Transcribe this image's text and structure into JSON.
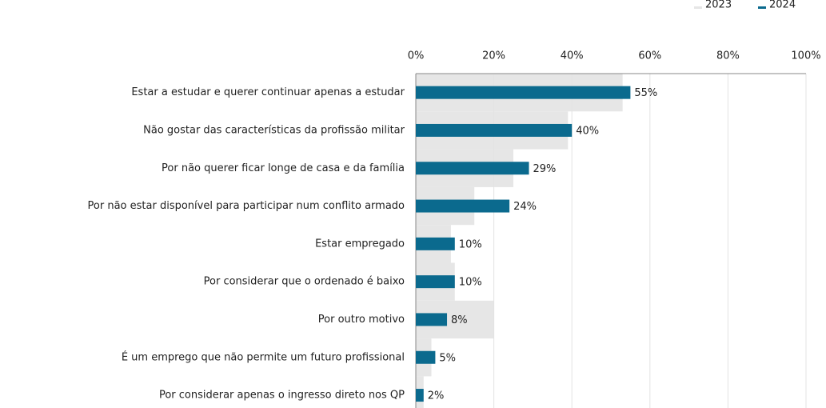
{
  "chart_data": {
    "type": "barh",
    "categories": [
      "Estar a estudar e querer continuar apenas a estudar",
      "Não gostar das características da profissão militar",
      "Por não querer ficar longe de casa e da família",
      "Por não estar disponível para participar num conflito armado",
      "Estar empregado",
      "Por considerar que o ordenado é baixo",
      "Por outro motivo",
      "É um emprego que não permite um futuro profissional",
      "Por considerar apenas o ingresso direto nos QP"
    ],
    "series": [
      {
        "name": "2023",
        "color": "#e6e6e6",
        "values": [
          53,
          39,
          25,
          15,
          9,
          10,
          20,
          4,
          2
        ]
      },
      {
        "name": "2024",
        "color": "#0b6a8e",
        "values": [
          55,
          40,
          29,
          24,
          10,
          10,
          8,
          5,
          2
        ],
        "value_labels": [
          "55%",
          "40%",
          "29%",
          "24%",
          "10%",
          "10%",
          "8%",
          "5%",
          "2%"
        ]
      }
    ],
    "xlim": [
      0,
      100
    ],
    "xticks": [
      {
        "value": 0,
        "label": "0%"
      },
      {
        "value": 20,
        "label": "20%"
      },
      {
        "value": 40,
        "label": "40%"
      },
      {
        "value": 60,
        "label": "60%"
      },
      {
        "value": 80,
        "label": "80%"
      },
      {
        "value": 100,
        "label": "100%"
      }
    ],
    "grid": true,
    "legend": "top-right"
  }
}
